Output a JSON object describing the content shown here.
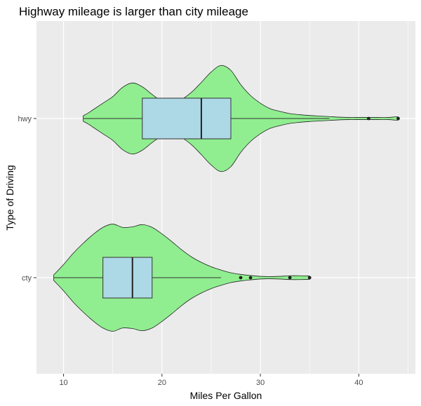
{
  "chart_data": {
    "type": "violin",
    "title": "Highway mileage is larger than city mileage",
    "xlabel": "Miles Per Gallon",
    "ylabel": "Type of Driving",
    "xlim": [
      7.25,
      45.75
    ],
    "x_ticks": [
      10,
      20,
      30,
      40
    ],
    "categories": [
      "cty",
      "hwy"
    ],
    "grid": true,
    "colors": {
      "panel": "#EBEBEB",
      "grid": "#FFFFFF",
      "violin_fill": "#90EE90",
      "box_fill": "#ADD8E6",
      "outline": "#333333"
    },
    "series": [
      {
        "category": "hwy",
        "min": 12,
        "q1": 18,
        "median": 24,
        "q3": 27,
        "max": 44,
        "whisker_low": 12,
        "whisker_high": 37,
        "outliers": [
          41,
          44
        ],
        "density": [
          [
            12,
            0.05
          ],
          [
            12.5,
            0.1
          ],
          [
            13,
            0.16
          ],
          [
            14,
            0.28
          ],
          [
            15,
            0.4
          ],
          [
            16,
            0.57
          ],
          [
            17,
            0.65
          ],
          [
            18,
            0.58
          ],
          [
            19,
            0.44
          ],
          [
            20,
            0.32
          ],
          [
            21,
            0.29
          ],
          [
            22,
            0.35
          ],
          [
            23,
            0.48
          ],
          [
            24,
            0.66
          ],
          [
            25,
            0.85
          ],
          [
            26,
            0.97
          ],
          [
            27,
            0.88
          ],
          [
            28,
            0.62
          ],
          [
            29,
            0.42
          ],
          [
            30,
            0.28
          ],
          [
            31,
            0.18
          ],
          [
            32,
            0.13
          ],
          [
            33,
            0.09
          ],
          [
            34,
            0.07
          ],
          [
            35,
            0.055
          ],
          [
            36,
            0.045
          ],
          [
            37,
            0.035
          ],
          [
            38,
            0.025
          ],
          [
            39,
            0.02
          ],
          [
            40,
            0.02
          ],
          [
            41,
            0.02
          ],
          [
            42,
            0.02
          ],
          [
            43,
            0.02
          ],
          [
            43.7,
            0.03
          ],
          [
            44,
            0.03
          ]
        ]
      },
      {
        "category": "cty",
        "min": 9,
        "q1": 14,
        "median": 17,
        "q3": 19,
        "max": 35,
        "whisker_low": 9,
        "whisker_high": 26,
        "outliers": [
          28,
          29,
          33,
          35
        ],
        "density": [
          [
            9,
            0.05
          ],
          [
            10,
            0.24
          ],
          [
            11,
            0.45
          ],
          [
            12,
            0.63
          ],
          [
            13,
            0.79
          ],
          [
            14,
            0.92
          ],
          [
            15,
            0.98
          ],
          [
            16,
            0.92
          ],
          [
            17,
            0.93
          ],
          [
            18,
            0.97
          ],
          [
            19,
            0.92
          ],
          [
            20,
            0.8
          ],
          [
            21,
            0.66
          ],
          [
            22,
            0.51
          ],
          [
            23,
            0.38
          ],
          [
            24,
            0.28
          ],
          [
            25,
            0.2
          ],
          [
            26,
            0.14
          ],
          [
            27,
            0.09
          ],
          [
            28,
            0.06
          ],
          [
            29,
            0.04
          ],
          [
            30,
            0.025
          ],
          [
            31,
            0.02
          ],
          [
            32,
            0.025
          ],
          [
            33,
            0.035
          ],
          [
            34,
            0.035
          ],
          [
            35,
            0.03
          ]
        ]
      }
    ]
  }
}
